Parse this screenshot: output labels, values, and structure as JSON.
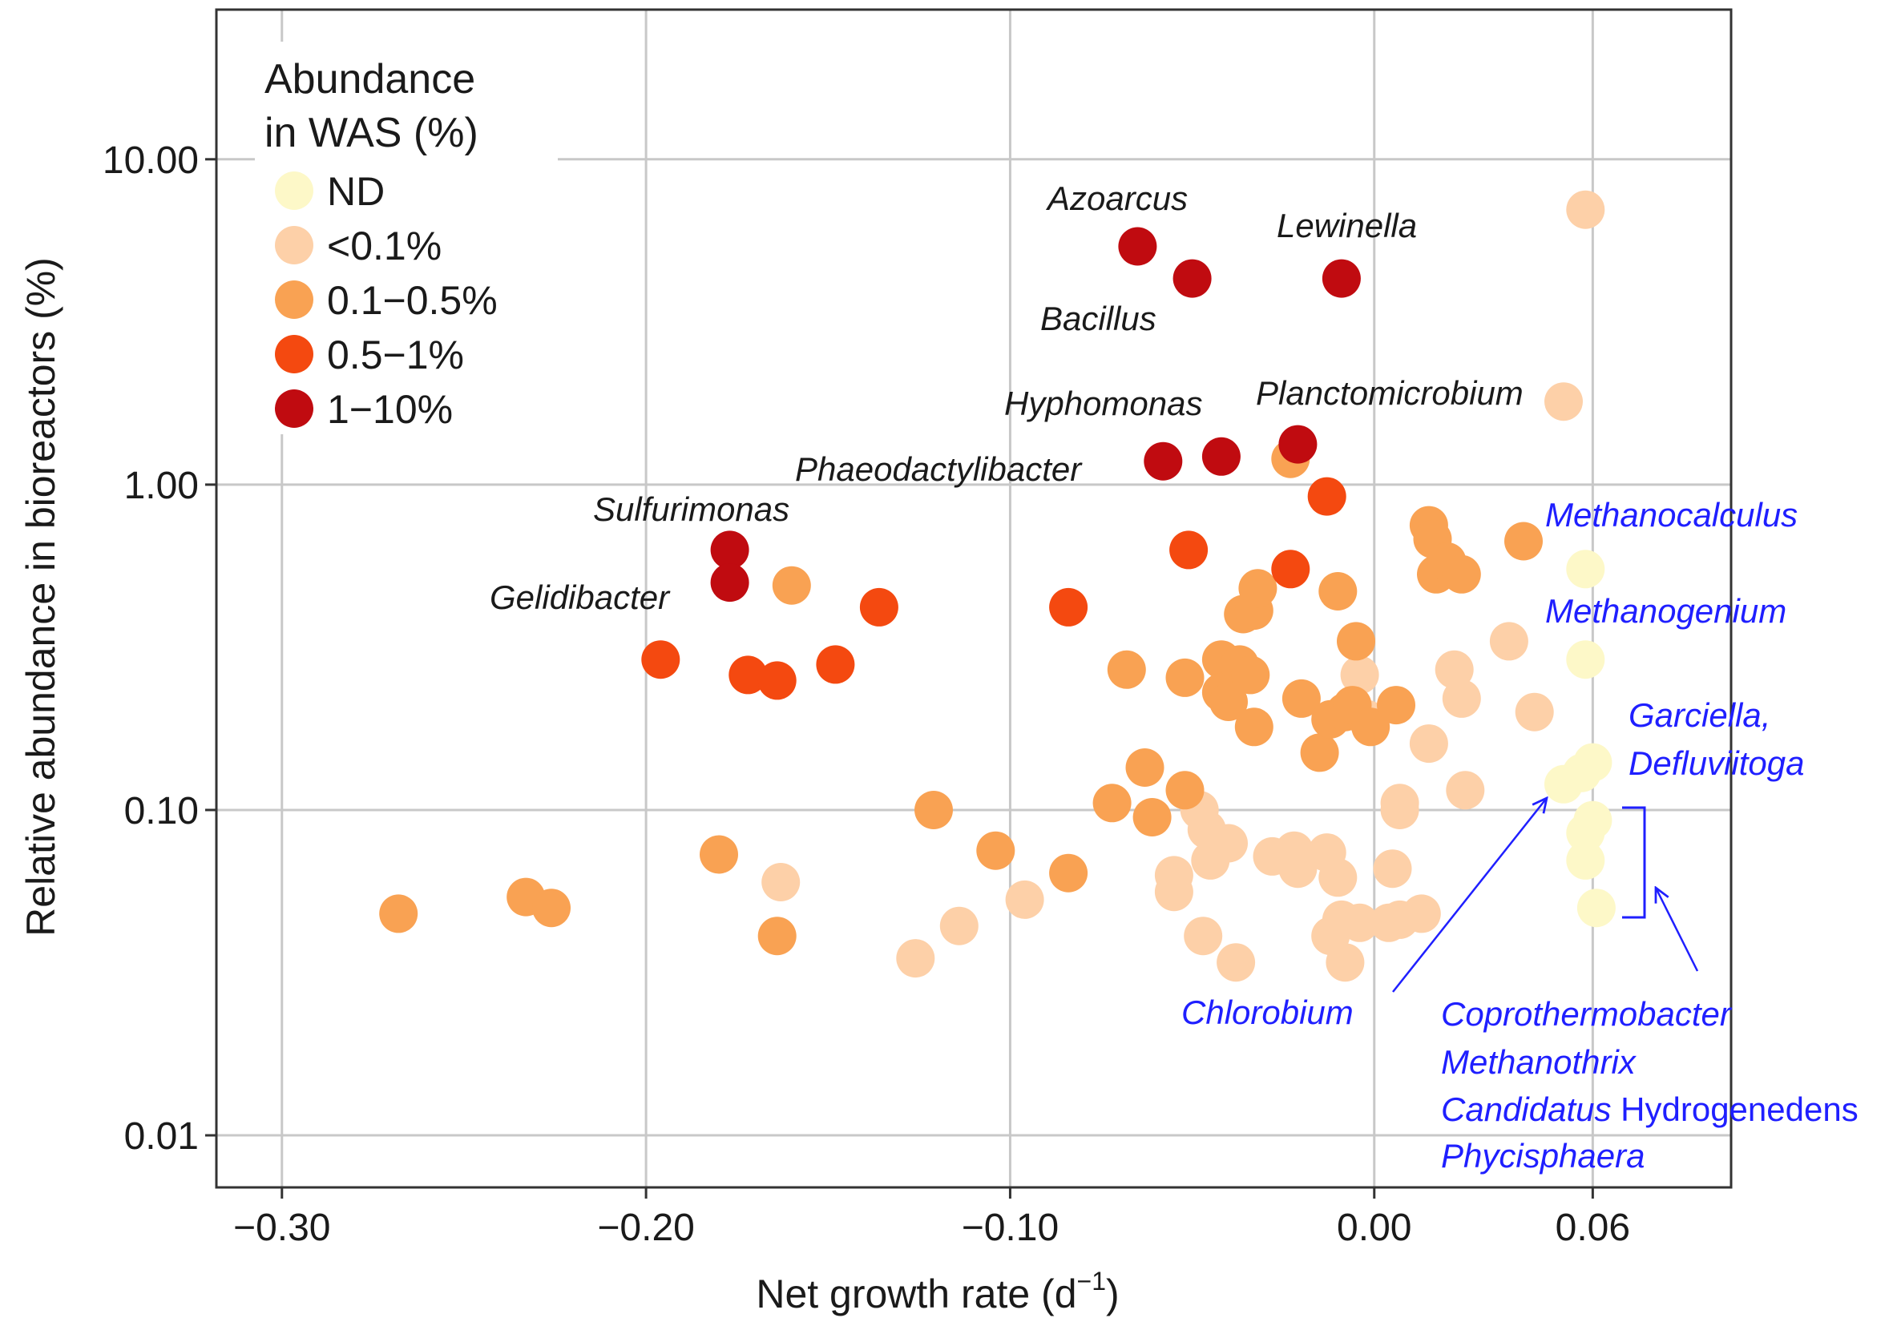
{
  "chart_data": {
    "type": "scatter",
    "title": "",
    "xlabel": "Net growth rate (d",
    "xlabel_superscript": "−1",
    "xlabel_suffix": ")",
    "ylabel": "Relative abundance in bioreactors (%)",
    "xlim": [
      -0.318,
      0.098
    ],
    "ylim_log10": [
      -2.16,
      1.46
    ],
    "x_ticks": [
      {
        "value": -0.3,
        "label": "−0.30"
      },
      {
        "value": -0.2,
        "label": "−0.20"
      },
      {
        "value": -0.1,
        "label": "−0.10"
      },
      {
        "value": 0.0,
        "label": "0.00"
      },
      {
        "value": 0.06,
        "label": "0.06"
      }
    ],
    "y_ticks": [
      {
        "value": 10,
        "label": "10.00"
      },
      {
        "value": 1,
        "label": "1.00"
      },
      {
        "value": 0.1,
        "label": "0.10"
      },
      {
        "value": 0.01,
        "label": "0.01"
      }
    ],
    "grid": true,
    "legend": {
      "title_line1": "Abundance",
      "title_line2": "in WAS (%)",
      "placement": "top-left",
      "entries": [
        {
          "key": "ND",
          "label": "ND",
          "color": "#fdf8c8"
        },
        {
          "key": "lt01",
          "label": "<0.1%",
          "color": "#fdd0a8"
        },
        {
          "key": "b01_05",
          "label": "0.1−0.5%",
          "color": "#f9a253"
        },
        {
          "key": "b05_1",
          "label": "0.5−1%",
          "color": "#f44910"
        },
        {
          "key": "b1_10",
          "label": "1−10%",
          "color": "#c00b10"
        }
      ]
    },
    "series": [
      {
        "name": "ND",
        "color": "#fdf8c8",
        "points": [
          [
            0.058,
            0.55
          ],
          [
            0.058,
            0.29
          ],
          [
            0.052,
            0.12
          ],
          [
            0.057,
            0.13
          ],
          [
            0.06,
            0.14
          ],
          [
            0.06,
            0.093
          ],
          [
            0.058,
            0.085
          ],
          [
            0.058,
            0.07
          ],
          [
            0.061,
            0.05
          ]
        ]
      },
      {
        "name": "<0.1%",
        "color": "#fdd0a8",
        "points": [
          [
            0.058,
            7.0
          ],
          [
            0.052,
            1.8
          ],
          [
            0.037,
            0.33
          ],
          [
            0.044,
            0.2
          ],
          [
            0.022,
            0.27
          ],
          [
            0.024,
            0.22
          ],
          [
            0.015,
            0.16
          ],
          [
            0.025,
            0.115
          ],
          [
            0.007,
            0.1
          ],
          [
            0.007,
            0.105
          ],
          [
            -0.004,
            0.26
          ],
          [
            -0.002,
            0.19
          ],
          [
            -0.163,
            0.06
          ],
          [
            -0.126,
            0.035
          ],
          [
            -0.114,
            0.044
          ],
          [
            -0.096,
            0.053
          ],
          [
            -0.055,
            0.063
          ],
          [
            -0.055,
            0.056
          ],
          [
            -0.048,
            0.1
          ],
          [
            -0.046,
            0.087
          ],
          [
            -0.045,
            0.07
          ],
          [
            -0.04,
            0.079
          ],
          [
            -0.047,
            0.041
          ],
          [
            -0.038,
            0.034
          ],
          [
            -0.028,
            0.072
          ],
          [
            -0.022,
            0.075
          ],
          [
            -0.021,
            0.066
          ],
          [
            -0.013,
            0.074
          ],
          [
            -0.01,
            0.062
          ],
          [
            -0.012,
            0.041
          ],
          [
            -0.009,
            0.046
          ],
          [
            -0.004,
            0.045
          ],
          [
            -0.008,
            0.034
          ],
          [
            0.005,
            0.066
          ],
          [
            0.007,
            0.046
          ],
          [
            0.013,
            0.048
          ],
          [
            0.004,
            0.045
          ]
        ]
      },
      {
        "name": "0.1−0.5%",
        "color": "#f9a253",
        "points": [
          [
            -0.268,
            0.048
          ],
          [
            -0.233,
            0.054
          ],
          [
            -0.226,
            0.05
          ],
          [
            -0.18,
            0.073
          ],
          [
            -0.164,
            0.041
          ],
          [
            -0.16,
            0.49
          ],
          [
            -0.121,
            0.1
          ],
          [
            -0.104,
            0.075
          ],
          [
            -0.084,
            0.064
          ],
          [
            -0.068,
            0.27
          ],
          [
            -0.072,
            0.105
          ],
          [
            -0.063,
            0.135
          ],
          [
            -0.061,
            0.095
          ],
          [
            -0.052,
            0.115
          ],
          [
            -0.052,
            0.255
          ],
          [
            -0.042,
            0.29
          ],
          [
            -0.042,
            0.23
          ],
          [
            -0.04,
            0.215
          ],
          [
            -0.037,
            0.28
          ],
          [
            -0.034,
            0.26
          ],
          [
            -0.036,
            0.4
          ],
          [
            -0.033,
            0.41
          ],
          [
            -0.032,
            0.48
          ],
          [
            -0.033,
            0.18
          ],
          [
            -0.023,
            1.2
          ],
          [
            -0.02,
            0.22
          ],
          [
            -0.015,
            0.15
          ],
          [
            -0.01,
            0.47
          ],
          [
            -0.005,
            0.33
          ],
          [
            -0.012,
            0.19
          ],
          [
            -0.008,
            0.2
          ],
          [
            -0.006,
            0.21
          ],
          [
            -0.001,
            0.18
          ],
          [
            0.006,
            0.21
          ],
          [
            0.015,
            0.75
          ],
          [
            0.016,
            0.68
          ],
          [
            0.017,
            0.53
          ],
          [
            0.02,
            0.58
          ],
          [
            0.024,
            0.53
          ],
          [
            0.041,
            0.67
          ]
        ]
      },
      {
        "name": "0.5−1%",
        "color": "#f44910",
        "points": [
          [
            -0.196,
            0.29
          ],
          [
            -0.172,
            0.26
          ],
          [
            -0.164,
            0.25
          ],
          [
            -0.148,
            0.28
          ],
          [
            -0.136,
            0.42
          ],
          [
            -0.084,
            0.42
          ],
          [
            -0.051,
            0.63
          ],
          [
            -0.023,
            0.55
          ],
          [
            -0.013,
            0.92
          ]
        ]
      },
      {
        "name": "1−10%",
        "color": "#c00b10",
        "points": [
          [
            -0.177,
            0.63
          ],
          [
            -0.177,
            0.5
          ],
          [
            -0.065,
            5.4
          ],
          [
            -0.05,
            4.3
          ],
          [
            -0.009,
            4.3
          ],
          [
            -0.058,
            1.18
          ],
          [
            -0.042,
            1.22
          ],
          [
            -0.021,
            1.33
          ]
        ]
      }
    ],
    "annotations_black": [
      {
        "text": "Azoarcus"
      },
      {
        "text": "Lewinella"
      },
      {
        "text": "Bacillus"
      },
      {
        "text": "Hyphomonas"
      },
      {
        "text": "Planctomicrobium"
      },
      {
        "text": "Phaeodactylibacter"
      },
      {
        "text": "Sulfurimonas"
      },
      {
        "text": "Gelidibacter"
      }
    ],
    "annotations_blue": {
      "methanocalculus": "Methanocalculus",
      "methanogenium": "Methanogenium",
      "garciella": "Garciella,",
      "defluviitoga": "Defluviitoga",
      "chlorobium": "Chlorobium",
      "coprothermobacter": "Coprothermobacter",
      "methanothrix": "Methanothrix",
      "candidatus": "Candidatus",
      "hydrogenedens": " Hydrogenedens",
      "phycisphaera": "Phycisphaera"
    },
    "annotation_color": "#1f1fff"
  }
}
